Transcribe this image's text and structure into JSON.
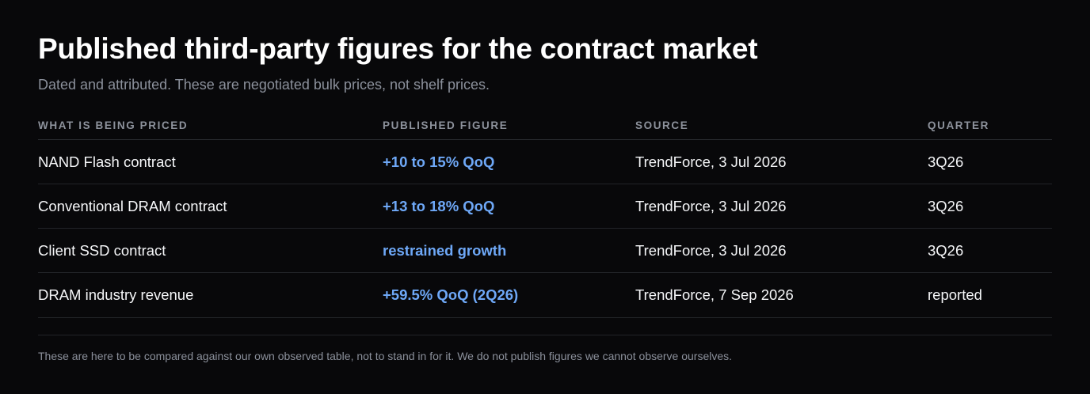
{
  "heading": {
    "title": "Published third-party figures for the contract market",
    "subtitle": "Dated and attributed. These are negotiated bulk prices, not shelf prices."
  },
  "table": {
    "columns": [
      "WHAT IS BEING PRICED",
      "PUBLISHED FIGURE",
      "SOURCE",
      "QUARTER"
    ],
    "rows": [
      {
        "item": "NAND Flash contract",
        "figure": "+10 to 15% QoQ",
        "source": "TrendForce, 3 Jul 2026",
        "quarter": "3Q26"
      },
      {
        "item": "Conventional DRAM contract",
        "figure": "+13 to 18% QoQ",
        "source": "TrendForce, 3 Jul 2026",
        "quarter": "3Q26"
      },
      {
        "item": "Client SSD contract",
        "figure": "restrained growth",
        "source": "TrendForce, 3 Jul 2026",
        "quarter": "3Q26"
      },
      {
        "item": "DRAM industry revenue",
        "figure": "+59.5% QoQ (2Q26)",
        "source": "TrendForce, 7 Sep 2026",
        "quarter": "reported"
      }
    ]
  },
  "footnote": "These are here to be compared against our own observed table, not to stand in for it. We do not publish figures we cannot observe ourselves.",
  "colors": {
    "background": "#08080a",
    "accent": "#6ea8f7",
    "muted": "#8b909b"
  }
}
